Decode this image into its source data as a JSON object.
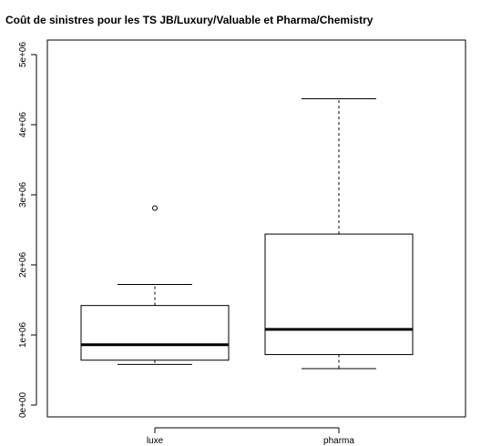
{
  "chart_data": {
    "type": "boxplot",
    "title": "Coût de sinistres pour les TS JB/Luxury/Valuable et Pharma/Chemistry",
    "xlabel": "",
    "ylabel": "",
    "ylim": [
      0,
      5000000
    ],
    "y_ticks": [
      {
        "value": 0,
        "label": "0e+00"
      },
      {
        "value": 1000000,
        "label": "1e+06"
      },
      {
        "value": 2000000,
        "label": "2e+06"
      },
      {
        "value": 3000000,
        "label": "3e+06"
      },
      {
        "value": 4000000,
        "label": "4e+06"
      },
      {
        "value": 5000000,
        "label": "5e+06"
      }
    ],
    "categories": [
      "luxe",
      "pharma"
    ],
    "boxes": [
      {
        "category": "luxe",
        "whisker_low": 580000,
        "q1": 640000,
        "median": 860000,
        "q3": 1420000,
        "whisker_high": 1720000,
        "outliers": [
          2810000
        ]
      },
      {
        "category": "pharma",
        "whisker_low": 520000,
        "q1": 720000,
        "median": 1080000,
        "q3": 2440000,
        "whisker_high": 4370000,
        "outliers": []
      }
    ],
    "grid": false,
    "legend": "none"
  }
}
